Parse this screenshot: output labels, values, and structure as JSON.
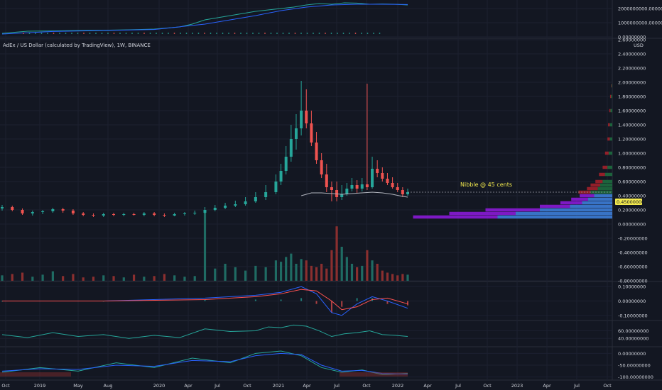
{
  "title": "AdEx / US Dollar (calculated by TradingView), 1W, BINANCE",
  "currency": "USD",
  "annotation": "Nibble @ 45 cents",
  "price_badge": "0.45000000",
  "colors": {
    "background": "#131722",
    "up": "#26a69a",
    "down": "#ef5350",
    "text": "#d1d4dc",
    "annotation": "#f2e94e",
    "vp_blue": "#3d7dd8",
    "vp_purple": "#8a19d6",
    "vp_green": "#1e6b3f",
    "vp_red": "#a3202a",
    "macd_blue": "#2962ff",
    "macd_red": "#ff5252",
    "osc_line": "#26a69a"
  },
  "x_axis": {
    "labels": [
      "Oct",
      "2019",
      "May",
      "Aug",
      "2020",
      "Apr",
      "Jul",
      "Oct",
      "2021",
      "Apr",
      "Jul",
      "Oct",
      "2022",
      "Apr",
      "Jul",
      "Oct",
      "2023",
      "Apr",
      "Jul",
      "Oct"
    ]
  },
  "panels": {
    "top": {
      "ticks": [
        "2000000000.00000000",
        "1000000000.00000000",
        "0.00000000"
      ]
    },
    "main": {
      "ticks": [
        "2.60000000",
        "2.40000000",
        "2.20000000",
        "2.00000000",
        "1.80000000",
        "1.60000000",
        "1.40000000",
        "1.20000000",
        "1.00000000",
        "0.80000000",
        "0.60000000",
        "0.40000000",
        "0.20000000",
        "0.00000000",
        "-0.20000000",
        "-0.40000000",
        "-0.60000000",
        "-0.80000000"
      ]
    },
    "macd": {
      "ticks": [
        "0.10000000",
        "0.00000000",
        "-0.10000000"
      ]
    },
    "rsi": {
      "ticks": [
        "60.00000000",
        "40.00000000"
      ]
    },
    "osc": {
      "ticks": [
        "0.00000000",
        "-50.00000000",
        "-100.00000000"
      ]
    }
  },
  "chart_data": [
    {
      "type": "line",
      "panel": "top",
      "x_range": [
        0,
        160
      ],
      "ylim": [
        0,
        2400000000
      ],
      "note_x_index": "weeks since first bar (Oct 2018)",
      "series": [
        {
          "color": "#26a69a",
          "x": [
            0,
            10,
            20,
            30,
            40,
            50,
            60,
            70,
            75,
            80,
            90,
            100,
            110,
            115,
            120,
            125,
            130,
            135,
            140,
            145,
            150,
            155,
            160
          ],
          "values": [
            250000000,
            400000000,
            420000000,
            450000000,
            470000000,
            500000000,
            550000000,
            700000000,
            900000000,
            1200000000,
            1500000000,
            1800000000,
            2000000000,
            2100000000,
            2250000000,
            2350000000,
            2300000000,
            2400000000,
            2380000000,
            2300000000,
            2320000000,
            2300000000,
            2250000000
          ]
        },
        {
          "color": "#2962ff",
          "x": [
            0,
            20,
            40,
            60,
            80,
            100,
            110,
            120,
            130,
            140,
            150,
            160
          ],
          "values": [
            200000000,
            380000000,
            450000000,
            520000000,
            900000000,
            1500000000,
            1850000000,
            2100000000,
            2250000000,
            2300000000,
            2300000000,
            2280000000
          ]
        }
      ]
    },
    {
      "type": "candlestick",
      "panel": "main",
      "ylim": [
        -0.8,
        2.6
      ],
      "x": [
        0,
        4,
        8,
        12,
        16,
        20,
        24,
        28,
        32,
        36,
        40,
        44,
        48,
        52,
        56,
        60,
        64,
        68,
        72,
        76,
        80,
        84,
        88,
        92,
        96,
        100,
        104,
        108,
        110,
        112,
        114,
        116,
        118,
        120,
        122,
        124,
        126,
        128,
        130,
        132,
        134,
        136,
        138,
        140,
        142,
        144,
        146,
        148,
        150,
        152,
        154,
        156,
        158,
        160
      ],
      "open": [
        0.22,
        0.24,
        0.2,
        0.15,
        0.17,
        0.18,
        0.21,
        0.19,
        0.15,
        0.13,
        0.12,
        0.14,
        0.13,
        0.14,
        0.13,
        0.15,
        0.13,
        0.12,
        0.14,
        0.15,
        0.16,
        0.2,
        0.23,
        0.26,
        0.28,
        0.32,
        0.38,
        0.45,
        0.6,
        0.75,
        0.95,
        1.2,
        1.35,
        1.6,
        1.42,
        1.15,
        0.9,
        0.7,
        0.52,
        0.48,
        0.38,
        0.42,
        0.5,
        0.55,
        0.5,
        0.56,
        0.52,
        0.78,
        0.72,
        0.64,
        0.58,
        0.52,
        0.48,
        0.42
      ],
      "close": [
        0.24,
        0.2,
        0.15,
        0.17,
        0.18,
        0.21,
        0.19,
        0.15,
        0.13,
        0.12,
        0.14,
        0.13,
        0.14,
        0.13,
        0.15,
        0.13,
        0.12,
        0.14,
        0.15,
        0.16,
        0.2,
        0.23,
        0.26,
        0.28,
        0.32,
        0.38,
        0.45,
        0.6,
        0.75,
        0.95,
        1.2,
        1.35,
        1.6,
        1.42,
        1.15,
        0.9,
        0.7,
        0.52,
        0.48,
        0.38,
        0.42,
        0.5,
        0.55,
        0.5,
        0.56,
        0.52,
        0.78,
        0.72,
        0.64,
        0.58,
        0.52,
        0.48,
        0.42,
        0.45
      ],
      "high": [
        0.27,
        0.26,
        0.22,
        0.19,
        0.2,
        0.23,
        0.23,
        0.21,
        0.17,
        0.15,
        0.16,
        0.16,
        0.16,
        0.16,
        0.17,
        0.17,
        0.15,
        0.16,
        0.17,
        0.19,
        0.24,
        0.27,
        0.3,
        0.33,
        0.38,
        0.45,
        0.55,
        0.7,
        0.85,
        1.1,
        1.4,
        1.55,
        2.02,
        1.9,
        1.6,
        1.3,
        1.0,
        0.85,
        0.6,
        0.6,
        0.55,
        0.58,
        0.65,
        0.62,
        0.65,
        1.98,
        0.95,
        0.9,
        0.8,
        0.72,
        0.66,
        0.58,
        0.52,
        0.5
      ],
      "low": [
        0.19,
        0.18,
        0.13,
        0.12,
        0.14,
        0.16,
        0.16,
        0.13,
        0.11,
        0.1,
        0.1,
        0.11,
        0.11,
        0.12,
        0.11,
        0.11,
        0.1,
        0.11,
        0.12,
        0.13,
        0.15,
        0.18,
        0.21,
        0.24,
        0.26,
        0.3,
        0.34,
        0.42,
        0.55,
        0.7,
        0.88,
        1.05,
        1.25,
        1.35,
        1.1,
        0.85,
        0.65,
        0.45,
        0.32,
        0.32,
        0.34,
        0.4,
        0.46,
        0.44,
        0.46,
        0.48,
        0.5,
        0.66,
        0.6,
        0.55,
        0.5,
        0.45,
        0.38,
        0.4
      ]
    },
    {
      "type": "line",
      "panel": "main",
      "name_hint": "moving average",
      "color": "#b2b5be",
      "x": [
        118,
        122,
        126,
        130,
        134,
        138,
        142,
        146,
        150,
        154,
        158,
        160
      ],
      "values": [
        0.4,
        0.44,
        0.44,
        0.43,
        0.42,
        0.43,
        0.44,
        0.45,
        0.44,
        0.42,
        0.39,
        0.38
      ]
    },
    {
      "type": "bar",
      "panel": "main",
      "name_hint": "volume",
      "ylim": [
        0,
        1
      ],
      "x": [
        0,
        4,
        8,
        12,
        16,
        20,
        24,
        28,
        32,
        36,
        40,
        44,
        48,
        52,
        56,
        60,
        64,
        68,
        72,
        76,
        80,
        84,
        88,
        92,
        96,
        100,
        104,
        108,
        110,
        112,
        114,
        116,
        118,
        120,
        122,
        124,
        126,
        128,
        130,
        132,
        134,
        136,
        138,
        140,
        142,
        144,
        146,
        148,
        150,
        152,
        154,
        156,
        158,
        160
      ],
      "values": [
        0.08,
        0.1,
        0.12,
        0.06,
        0.09,
        0.14,
        0.07,
        0.1,
        0.05,
        0.06,
        0.08,
        0.07,
        0.05,
        0.09,
        0.06,
        0.07,
        0.1,
        0.08,
        0.06,
        0.07,
        1.0,
        0.18,
        0.25,
        0.2,
        0.15,
        0.22,
        0.2,
        0.3,
        0.28,
        0.35,
        0.4,
        0.25,
        0.32,
        0.3,
        0.22,
        0.2,
        0.25,
        0.18,
        0.45,
        0.8,
        0.5,
        0.35,
        0.25,
        0.2,
        0.22,
        0.45,
        0.3,
        0.25,
        0.15,
        0.12,
        0.1,
        0.08,
        0.1,
        0.09
      ]
    },
    {
      "type": "bar",
      "panel": "main",
      "name_hint": "volume profile (horizontal)",
      "price_levels": [
        0.1,
        0.15,
        0.2,
        0.25,
        0.3,
        0.35,
        0.4,
        0.45,
        0.5,
        0.55,
        0.6,
        0.7,
        0.8,
        1.0,
        1.2,
        1.4,
        1.6,
        1.8,
        1.95
      ],
      "up_values": [
        95,
        80,
        60,
        35,
        25,
        20,
        15,
        18,
        12,
        10,
        8,
        6,
        4,
        3,
        2,
        2,
        1.5,
        1,
        0.5
      ],
      "down_values": [
        70,
        55,
        45,
        25,
        18,
        14,
        12,
        10,
        9,
        8,
        6,
        5,
        4,
        3,
        2,
        1.5,
        1,
        0.8,
        0.4
      ]
    },
    {
      "type": "line",
      "panel": "macd",
      "ylim": [
        -0.13,
        0.13
      ],
      "series": [
        {
          "color": "#2962ff",
          "x": [
            0,
            40,
            80,
            100,
            110,
            118,
            124,
            130,
            134,
            140,
            146,
            152,
            160
          ],
          "values": [
            0.0,
            0.0,
            0.02,
            0.04,
            0.06,
            0.1,
            0.05,
            -0.08,
            -0.1,
            -0.02,
            0.03,
            0.0,
            -0.05
          ]
        },
        {
          "color": "#ff5252",
          "x": [
            0,
            40,
            80,
            100,
            110,
            118,
            124,
            130,
            134,
            140,
            146,
            152,
            160
          ],
          "values": [
            0.0,
            0.0,
            0.01,
            0.03,
            0.05,
            0.08,
            0.07,
            0.0,
            -0.06,
            -0.04,
            0.01,
            0.02,
            -0.02
          ]
        }
      ],
      "histogram": [
        0.0,
        0.0,
        0.01,
        0.01,
        0.01,
        0.02,
        -0.02,
        -0.08,
        -0.04,
        0.02,
        0.02,
        -0.02,
        -0.03
      ]
    },
    {
      "type": "line",
      "panel": "rsi",
      "ylim": [
        20,
        85
      ],
      "color": "#26a69a",
      "x": [
        0,
        10,
        20,
        30,
        40,
        50,
        60,
        70,
        80,
        90,
        100,
        105,
        110,
        115,
        120,
        125,
        130,
        135,
        140,
        145,
        150,
        155,
        160
      ],
      "values": [
        50,
        42,
        55,
        45,
        50,
        40,
        48,
        42,
        65,
        58,
        60,
        70,
        68,
        75,
        72,
        60,
        45,
        52,
        55,
        60,
        50,
        48,
        45
      ]
    },
    {
      "type": "line",
      "panel": "osc",
      "ylim": [
        -110,
        25
      ],
      "series": [
        {
          "color": "#26a69a",
          "x": [
            0,
            15,
            30,
            45,
            60,
            75,
            90,
            100,
            110,
            118,
            126,
            134,
            142,
            150,
            160
          ],
          "values": [
            -80,
            -60,
            -75,
            -40,
            -60,
            -20,
            -40,
            0,
            10,
            -10,
            -60,
            -80,
            -70,
            -90,
            -85
          ]
        },
        {
          "color": "#2962ff",
          "x": [
            0,
            15,
            30,
            45,
            60,
            75,
            90,
            100,
            110,
            118,
            126,
            134,
            142,
            150,
            160
          ],
          "values": [
            -75,
            -65,
            -68,
            -50,
            -55,
            -30,
            -35,
            -10,
            0,
            -5,
            -50,
            -75,
            -72,
            -85,
            -88
          ]
        }
      ]
    }
  ]
}
